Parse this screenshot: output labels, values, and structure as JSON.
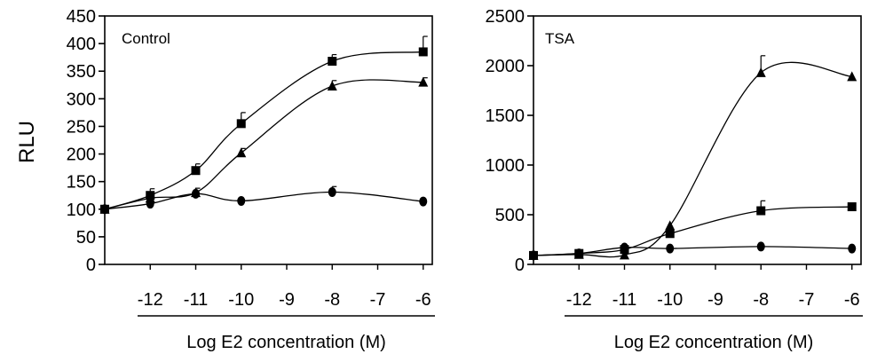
{
  "figure": {
    "ylabel": "RLU"
  },
  "chart_data": [
    {
      "type": "line",
      "panel_label": "Control",
      "xlabel": "Log E2 concentration (M)",
      "ylabel": "RLU",
      "ylim": [
        0,
        450
      ],
      "yticks": [
        0,
        50,
        100,
        150,
        200,
        250,
        300,
        350,
        400,
        450
      ],
      "xlim": [
        -13.0,
        -5.8
      ],
      "xticks": [
        -12,
        -11,
        -10,
        -9,
        -8,
        -7,
        -6
      ],
      "xtick_labels": [
        "-12",
        "-11",
        "-10",
        "-9",
        "-8",
        "-7",
        "-6"
      ],
      "series": [
        {
          "marker": "square",
          "x": [
            -13,
            -12,
            -11,
            -10,
            -8,
            -6
          ],
          "y": [
            100,
            125,
            170,
            255,
            368,
            385
          ],
          "err": [
            0,
            12,
            12,
            20,
            12,
            28
          ]
        },
        {
          "marker": "triangle",
          "x": [
            -13,
            -12,
            -11,
            -10,
            -8,
            -6
          ],
          "y": [
            100,
            120,
            130,
            202,
            323,
            330
          ],
          "err": [
            0,
            8,
            8,
            8,
            10,
            8
          ]
        },
        {
          "marker": "circle",
          "x": [
            -13,
            -12,
            -11,
            -10,
            -8,
            -6
          ],
          "y": [
            100,
            110,
            128,
            115,
            131,
            114
          ],
          "err": [
            0,
            0,
            0,
            0,
            10,
            0
          ]
        }
      ]
    },
    {
      "type": "line",
      "panel_label": "TSA",
      "xlabel": "Log E2 concentration (M)",
      "ylabel": "",
      "ylim": [
        0,
        2500
      ],
      "yticks": [
        0,
        500,
        1000,
        1500,
        2000,
        2500
      ],
      "xlim": [
        -13.0,
        -5.8
      ],
      "xticks": [
        -12,
        -11,
        -10,
        -9,
        -8,
        -7,
        -6
      ],
      "xtick_labels": [
        "-12",
        "-11",
        "-10",
        "-9",
        "-8",
        "-7",
        "-6"
      ],
      "series": [
        {
          "marker": "square",
          "x": [
            -13,
            -12,
            -11,
            -10,
            -8,
            -6
          ],
          "y": [
            90,
            110,
            150,
            310,
            540,
            580
          ],
          "err": [
            0,
            0,
            0,
            0,
            100,
            0
          ]
        },
        {
          "marker": "triangle",
          "x": [
            -13,
            -12,
            -11,
            -10,
            -8,
            -6
          ],
          "y": [
            90,
            100,
            95,
            390,
            1930,
            1890
          ],
          "err": [
            0,
            0,
            0,
            0,
            170,
            0
          ]
        },
        {
          "marker": "circle",
          "x": [
            -13,
            -12,
            -11,
            -10,
            -8,
            -6
          ],
          "y": [
            90,
            110,
            170,
            160,
            180,
            160
          ],
          "err": [
            0,
            0,
            0,
            0,
            0,
            0
          ]
        }
      ]
    }
  ]
}
